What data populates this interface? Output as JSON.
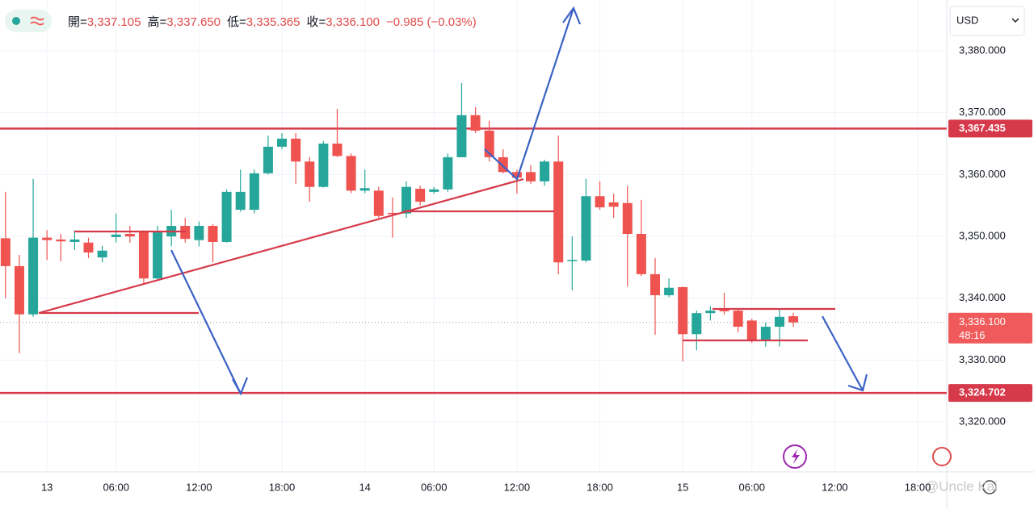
{
  "chart_data": {
    "type": "candlestick",
    "currency": "USD",
    "ohlc_labels": [
      "開=",
      "高=",
      "低=",
      "收="
    ],
    "ohlc_values": [
      "3,337.105",
      "3,337.650",
      "3,335.365",
      "3,336.100"
    ],
    "change": "−0.985 (−0.03%)",
    "up_color": "#26a69a",
    "down_color": "#ef5350",
    "series": {
      "open": [
        3349.7,
        3345.2,
        3337.4,
        3349.8,
        3349.5,
        3349.1,
        3349.0,
        3346.6,
        3349.9,
        3350.4,
        3350.7,
        3343.2,
        3350.0,
        3351.7,
        3349.4,
        3351.7,
        3349.1,
        3354.3,
        3354.3,
        3360.2,
        3364.5,
        3365.8,
        3362.1,
        3358.0,
        3365.0,
        3363.0,
        3357.4,
        3357.4,
        3353.8,
        3353.7,
        3357.7,
        3357.2,
        3357.6,
        3362.8,
        3369.6,
        3367.1,
        3362.8,
        3360.4,
        3360.4,
        3358.9,
        3362.1,
        3346.0,
        3346.1,
        3356.5,
        3355.5,
        3355.4,
        3350.4,
        3343.9,
        3340.5,
        3341.8,
        3334.2,
        3337.6,
        3338.3,
        3338.0,
        3336.4,
        3333.1,
        3335.4,
        3337.105
      ],
      "high": [
        3357.2,
        3347.0,
        3359.3,
        3351.0,
        3350.4,
        3351.0,
        3349.8,
        3348.5,
        3353.7,
        3351.7,
        3351.0,
        3351.7,
        3354.3,
        3353.0,
        3352.4,
        3352.0,
        3357.6,
        3360.8,
        3360.8,
        3366.3,
        3366.7,
        3366.7,
        3362.8,
        3365.4,
        3370.6,
        3363.4,
        3360.8,
        3358.0,
        3356.3,
        3358.9,
        3358.2,
        3358.0,
        3363.4,
        3374.8,
        3370.9,
        3368.7,
        3364.1,
        3360.8,
        3361.5,
        3362.4,
        3366.3,
        3350.0,
        3359.3,
        3358.9,
        3356.9,
        3358.2,
        3355.9,
        3346.5,
        3343.2,
        3341.9,
        3338.0,
        3338.7,
        3340.9,
        3338.3,
        3336.7,
        3336.1,
        3338.3,
        3337.65
      ],
      "low": [
        3340.0,
        3331.1,
        3337.0,
        3346.2,
        3346.0,
        3347.8,
        3346.5,
        3345.8,
        3349.0,
        3349.0,
        3342.3,
        3343.0,
        3348.4,
        3349.0,
        3348.4,
        3345.8,
        3349.0,
        3354.0,
        3353.7,
        3360.0,
        3364.1,
        3358.5,
        3355.6,
        3357.9,
        3362.8,
        3357.0,
        3357.0,
        3353.0,
        3349.8,
        3353.0,
        3355.0,
        3356.9,
        3357.2,
        3362.8,
        3366.7,
        3362.1,
        3360.2,
        3356.9,
        3358.5,
        3358.2,
        3343.9,
        3341.3,
        3345.8,
        3354.3,
        3353.0,
        3341.9,
        3343.6,
        3334.1,
        3340.2,
        3329.8,
        3331.6,
        3336.4,
        3337.4,
        3334.5,
        3332.8,
        3332.2,
        3332.2,
        3335.365
      ],
      "close": [
        3345.2,
        3337.4,
        3349.8,
        3349.4,
        3349.2,
        3349.5,
        3347.4,
        3347.7,
        3350.3,
        3350.0,
        3343.2,
        3350.8,
        3351.7,
        3349.6,
        3351.7,
        3349.1,
        3357.2,
        3357.2,
        3360.2,
        3364.5,
        3365.8,
        3362.1,
        3358.0,
        3365.0,
        3363.0,
        3357.4,
        3357.8,
        3353.3,
        3353.6,
        3358.0,
        3355.6,
        3357.6,
        3362.8,
        3369.6,
        3367.1,
        3362.8,
        3360.4,
        3359.5,
        3358.9,
        3362.1,
        3345.8,
        3346.2,
        3356.5,
        3354.7,
        3354.8,
        3350.4,
        3343.9,
        3340.5,
        3341.7,
        3334.2,
        3337.6,
        3338.0,
        3337.9,
        3335.4,
        3333.1,
        3335.4,
        3337.0,
        3336.1
      ]
    },
    "xlim": [
      -0.4,
      68.1
    ],
    "xticks": [
      {
        "value": 3,
        "label": "13"
      },
      {
        "value": 8,
        "label": "06:00"
      },
      {
        "value": 14,
        "label": "12:00"
      },
      {
        "value": 20,
        "label": "18:00"
      },
      {
        "value": 26,
        "label": "14"
      },
      {
        "value": 31,
        "label": "06:00"
      },
      {
        "value": 37,
        "label": "12:00"
      },
      {
        "value": 43,
        "label": "18:00"
      },
      {
        "value": 49,
        "label": "15"
      },
      {
        "value": 54,
        "label": "06:00"
      },
      {
        "value": 60,
        "label": "12:00"
      },
      {
        "value": 66,
        "label": "18:00"
      }
    ],
    "ylim": [
      3311.94,
      3388.21
    ],
    "yticks": [
      {
        "value": 3320,
        "label": "3,320.000"
      },
      {
        "value": 3330,
        "label": "3,330.000"
      },
      {
        "value": 3340,
        "label": "3,340.000"
      },
      {
        "value": 3350,
        "label": "3,350.000"
      },
      {
        "value": 3360,
        "label": "3,360.000"
      },
      {
        "value": 3370,
        "label": "3,370.000"
      },
      {
        "value": 3380,
        "label": "3,380.000"
      }
    ],
    "grid": true,
    "levels": [
      {
        "value": 3367.435,
        "label": "3,367.435"
      },
      {
        "value": 3324.702,
        "label": "3,324.702"
      }
    ],
    "level_color": "#d6394a",
    "last_price": {
      "value": 3336.1,
      "label": "3,336.100",
      "countdown": "48:16"
    },
    "watermark": "@Uncle Kai"
  }
}
